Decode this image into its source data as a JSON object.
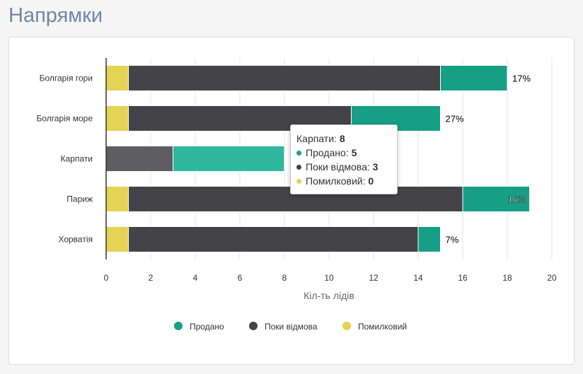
{
  "page": {
    "title": "Напрямки"
  },
  "colors": {
    "sold": "#169f85",
    "pending": "#444348",
    "mistaken": "#e4d354",
    "sold_hover": "#2fb89d",
    "pending_hover": "#5e5d61",
    "title": "#6f87a8"
  },
  "chart_data": {
    "type": "bar",
    "orientation": "horizontal",
    "stacked": true,
    "categories": [
      "Болгарія гори",
      "Болгарія море",
      "Карпати",
      "Париж",
      "Хорватія"
    ],
    "series": [
      {
        "name": "Помилковий",
        "color": "#e4d354",
        "values": [
          1,
          1,
          0,
          1,
          1
        ]
      },
      {
        "name": "Поки відмова",
        "color": "#444348",
        "values": [
          14,
          10,
          3,
          15,
          13
        ]
      },
      {
        "name": "Продано",
        "color": "#169f85",
        "values": [
          3,
          4,
          5,
          3,
          1
        ]
      }
    ],
    "data_labels": [
      "17%",
      "27%",
      "",
      "16%",
      "7%"
    ],
    "xlabel": "Кіл-ть лідів",
    "xlim": [
      0,
      20
    ],
    "xticks": [
      0,
      2,
      4,
      6,
      8,
      10,
      12,
      14,
      16,
      18,
      20
    ],
    "grid": true,
    "legend": {
      "position": "bottom",
      "items": [
        {
          "name": "Продано",
          "color": "#169f85"
        },
        {
          "name": "Поки відмова",
          "color": "#444348"
        },
        {
          "name": "Помилковий",
          "color": "#e4d354"
        }
      ]
    },
    "tooltip": {
      "category": "Карпати",
      "total": "8",
      "rows": [
        {
          "label": "Продано",
          "value": "5",
          "color": "#169f85"
        },
        {
          "label": "Поки відмова",
          "value": "3",
          "color": "#444348"
        },
        {
          "label": "Помилковий",
          "value": "0",
          "color": "#e4d354"
        }
      ]
    }
  }
}
